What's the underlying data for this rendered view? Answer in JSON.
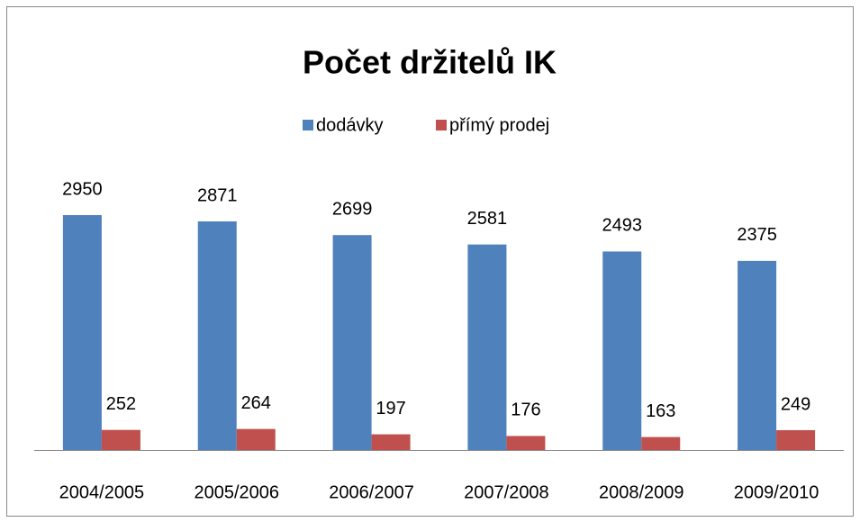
{
  "chart_data": {
    "type": "bar",
    "title": "Počet držitelů IK",
    "categories": [
      "2004/2005",
      "2005/2006",
      "2006/2007",
      "2007/2008",
      "2008/2009",
      "2009/2010"
    ],
    "series": [
      {
        "name": "dodávky",
        "color": "#4f81bd",
        "values": [
          2950,
          2871,
          2699,
          2581,
          2493,
          2375
        ]
      },
      {
        "name": "přímý prodej",
        "color": "#c0504d",
        "values": [
          252,
          264,
          197,
          176,
          163,
          249
        ]
      }
    ],
    "legend": "top"
  }
}
